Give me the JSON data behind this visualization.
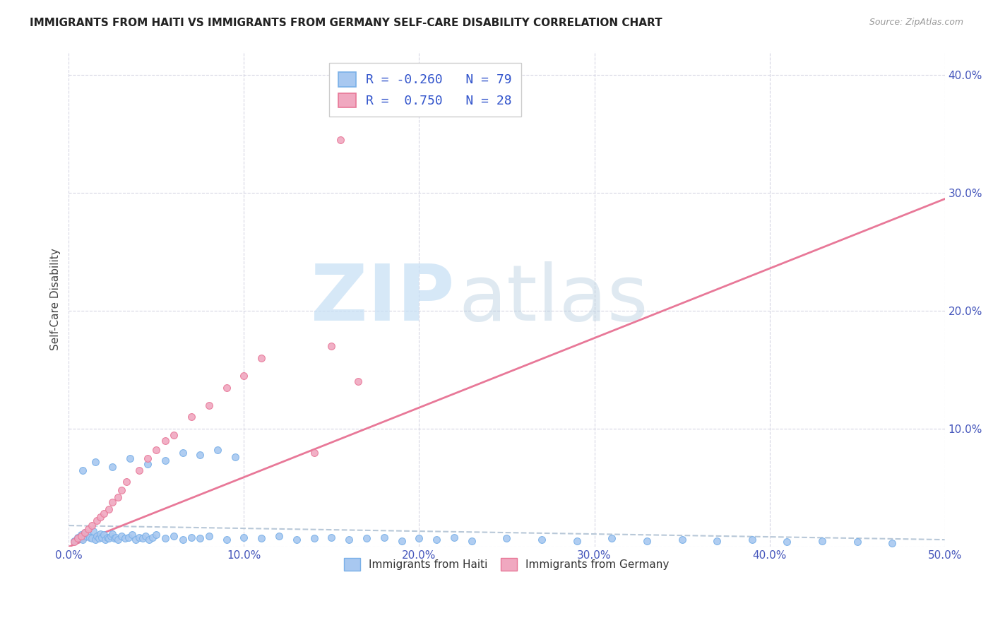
{
  "title": "IMMIGRANTS FROM HAITI VS IMMIGRANTS FROM GERMANY SELF-CARE DISABILITY CORRELATION CHART",
  "source": "Source: ZipAtlas.com",
  "ylabel": "Self-Care Disability",
  "xlim": [
    0.0,
    0.5
  ],
  "ylim": [
    0.0,
    0.42
  ],
  "xticks": [
    0.0,
    0.1,
    0.2,
    0.3,
    0.4,
    0.5
  ],
  "xticklabels": [
    "0.0%",
    "10.0%",
    "20.0%",
    "30.0%",
    "40.0%",
    "50.0%"
  ],
  "yticks": [
    0.0,
    0.1,
    0.2,
    0.3,
    0.4
  ],
  "yticklabels": [
    "",
    "10.0%",
    "20.0%",
    "30.0%",
    "40.0%"
  ],
  "color_haiti": "#a8c8f0",
  "color_germany": "#f0a8c0",
  "edge_haiti": "#7ab0e8",
  "edge_germany": "#e87898",
  "color_trendline_haiti": "#b8c8d8",
  "color_trendline_germany": "#e87898",
  "haiti_x": [
    0.003,
    0.005,
    0.006,
    0.007,
    0.008,
    0.009,
    0.01,
    0.011,
    0.012,
    0.013,
    0.014,
    0.015,
    0.016,
    0.017,
    0.018,
    0.019,
    0.02,
    0.021,
    0.022,
    0.023,
    0.024,
    0.025,
    0.026,
    0.027,
    0.028,
    0.03,
    0.032,
    0.034,
    0.036,
    0.038,
    0.04,
    0.042,
    0.044,
    0.046,
    0.048,
    0.05,
    0.055,
    0.06,
    0.065,
    0.07,
    0.075,
    0.08,
    0.09,
    0.1,
    0.11,
    0.12,
    0.13,
    0.14,
    0.15,
    0.16,
    0.17,
    0.18,
    0.19,
    0.2,
    0.21,
    0.22,
    0.23,
    0.25,
    0.27,
    0.29,
    0.31,
    0.33,
    0.35,
    0.37,
    0.39,
    0.41,
    0.43,
    0.45,
    0.47,
    0.008,
    0.015,
    0.025,
    0.035,
    0.045,
    0.055,
    0.065,
    0.075,
    0.085,
    0.095
  ],
  "haiti_y": [
    0.005,
    0.008,
    0.007,
    0.01,
    0.006,
    0.012,
    0.009,
    0.011,
    0.008,
    0.007,
    0.013,
    0.006,
    0.009,
    0.007,
    0.011,
    0.008,
    0.01,
    0.006,
    0.008,
    0.007,
    0.009,
    0.011,
    0.007,
    0.008,
    0.006,
    0.009,
    0.007,
    0.008,
    0.01,
    0.006,
    0.008,
    0.007,
    0.009,
    0.006,
    0.008,
    0.01,
    0.007,
    0.009,
    0.006,
    0.008,
    0.007,
    0.009,
    0.006,
    0.008,
    0.007,
    0.009,
    0.006,
    0.007,
    0.008,
    0.006,
    0.007,
    0.008,
    0.005,
    0.007,
    0.006,
    0.008,
    0.005,
    0.007,
    0.006,
    0.005,
    0.007,
    0.005,
    0.006,
    0.005,
    0.006,
    0.004,
    0.005,
    0.004,
    0.003,
    0.065,
    0.072,
    0.068,
    0.075,
    0.07,
    0.073,
    0.08,
    0.078,
    0.082,
    0.076
  ],
  "germany_x": [
    0.003,
    0.005,
    0.007,
    0.009,
    0.011,
    0.013,
    0.016,
    0.018,
    0.02,
    0.023,
    0.025,
    0.028,
    0.03,
    0.033,
    0.04,
    0.045,
    0.05,
    0.055,
    0.06,
    0.07,
    0.08,
    0.09,
    0.1,
    0.11,
    0.14,
    0.15,
    0.155,
    0.165
  ],
  "germany_y": [
    0.004,
    0.007,
    0.009,
    0.012,
    0.015,
    0.018,
    0.022,
    0.025,
    0.028,
    0.032,
    0.038,
    0.042,
    0.048,
    0.055,
    0.065,
    0.075,
    0.082,
    0.09,
    0.095,
    0.11,
    0.12,
    0.135,
    0.145,
    0.16,
    0.08,
    0.17,
    0.345,
    0.14
  ],
  "haiti_trend_x": [
    0.0,
    0.5
  ],
  "haiti_trend_y": [
    0.018,
    0.006
  ],
  "germany_trend_x": [
    0.0,
    0.5
  ],
  "germany_trend_y": [
    0.0,
    0.295
  ]
}
